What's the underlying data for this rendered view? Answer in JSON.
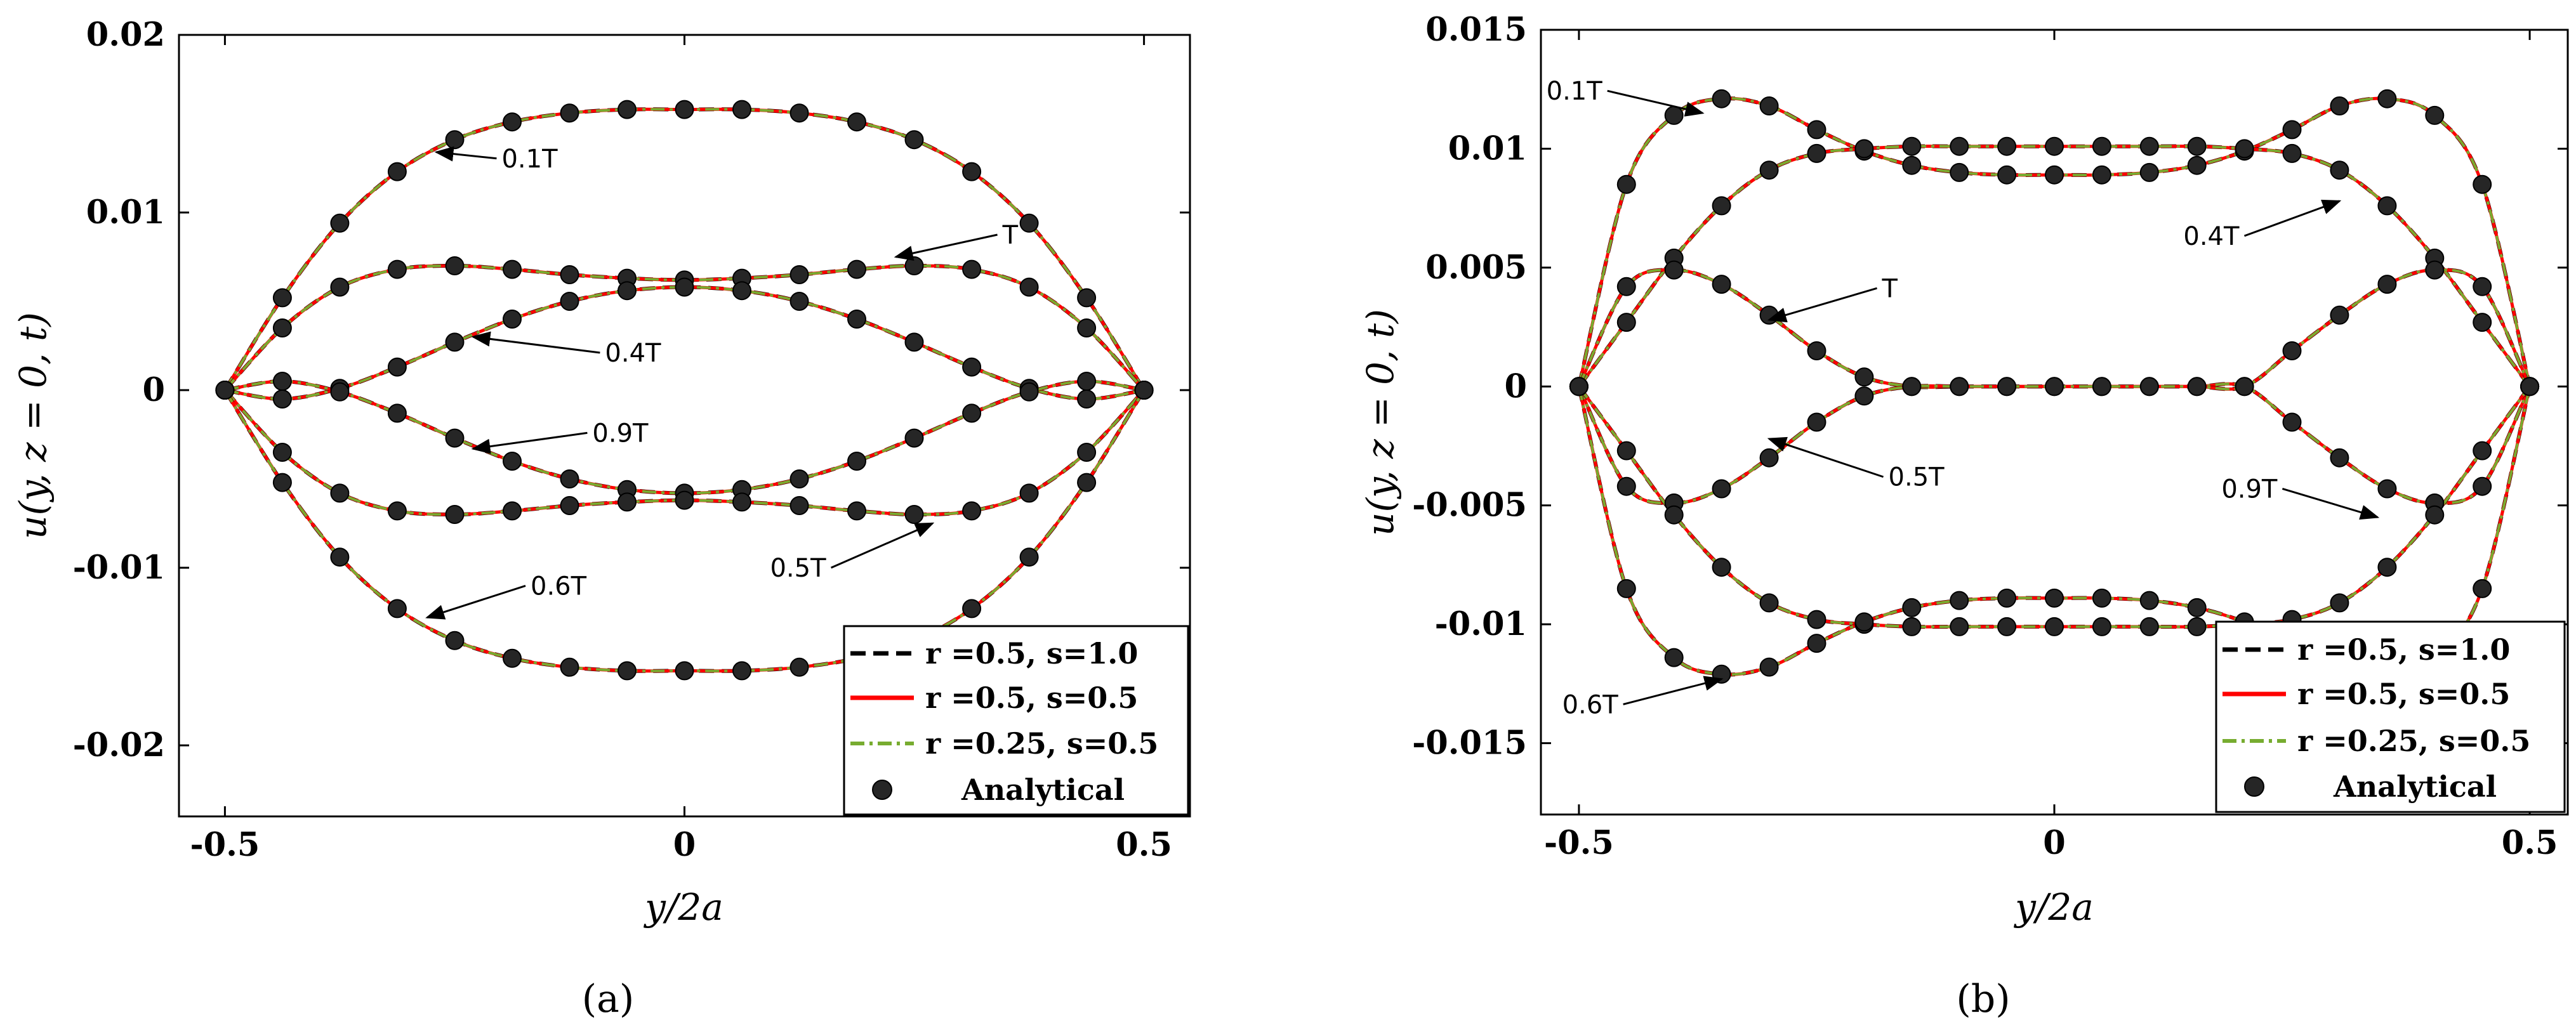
{
  "legend": {
    "entries": [
      {
        "label": "r =0.5, s=1.0",
        "style": "dashed",
        "color": "#000000"
      },
      {
        "label": "r =0.5, s=0.5",
        "style": "solid",
        "color": "#ff0000"
      },
      {
        "label": "r =0.25, s=0.5",
        "style": "dashdot",
        "color": "#77ac30"
      },
      {
        "label": "Analytical",
        "style": "marker",
        "color": "#262626"
      }
    ]
  },
  "chart_data": [
    {
      "type": "line",
      "panel_label": "(a)",
      "xlabel": "y/2a",
      "ylabel": "u(y, z = 0, t)",
      "xlim": [
        -0.55,
        0.55
      ],
      "ylim": [
        -0.024,
        0.02
      ],
      "xticks": [
        -0.5,
        0,
        0.5
      ],
      "xtick_labels": [
        "-0.5",
        "0",
        "0.5"
      ],
      "yticks": [
        -0.02,
        -0.01,
        0,
        0.01,
        0.02
      ],
      "ytick_labels": [
        "-0.02",
        "-0.01",
        "0",
        "0.01",
        "0.02"
      ],
      "x": [
        -0.5,
        -0.4375,
        -0.375,
        -0.3125,
        -0.25,
        -0.1875,
        -0.125,
        -0.0625,
        0,
        0.0625,
        0.125,
        0.1875,
        0.25,
        0.3125,
        0.375,
        0.4375,
        0.5
      ],
      "series": [
        {
          "name": "0.1T",
          "values": [
            0,
            0.0052,
            0.0094,
            0.0123,
            0.0141,
            0.0151,
            0.0156,
            0.0158,
            0.0158,
            0.0158,
            0.0156,
            0.0151,
            0.0141,
            0.0123,
            0.0094,
            0.0052,
            0
          ]
        },
        {
          "name": "T",
          "values": [
            0,
            0.0035,
            0.0058,
            0.0068,
            0.007,
            0.0068,
            0.0065,
            0.0063,
            0.0062,
            0.0063,
            0.0065,
            0.0068,
            0.007,
            0.0068,
            0.0058,
            0.0035,
            0
          ]
        },
        {
          "name": "0.4T",
          "values": [
            0,
            -0.0005,
            0.0001,
            0.0013,
            0.0027,
            0.004,
            0.005,
            0.0056,
            0.0058,
            0.0056,
            0.005,
            0.004,
            0.0027,
            0.0013,
            0.0001,
            -0.0005,
            0
          ]
        },
        {
          "name": "0.9T",
          "values": [
            0,
            0.0005,
            -0.0001,
            -0.0013,
            -0.0027,
            -0.004,
            -0.005,
            -0.0056,
            -0.0058,
            -0.0056,
            -0.005,
            -0.004,
            -0.0027,
            -0.0013,
            -0.0001,
            0.0005,
            0
          ]
        },
        {
          "name": "0.5T",
          "values": [
            0,
            -0.0035,
            -0.0058,
            -0.0068,
            -0.007,
            -0.0068,
            -0.0065,
            -0.0063,
            -0.0062,
            -0.0063,
            -0.0065,
            -0.0068,
            -0.007,
            -0.0068,
            -0.0058,
            -0.0035,
            0
          ]
        },
        {
          "name": "0.6T",
          "values": [
            0,
            -0.0052,
            -0.0094,
            -0.0123,
            -0.0141,
            -0.0151,
            -0.0156,
            -0.0158,
            -0.0158,
            -0.0158,
            -0.0156,
            -0.0151,
            -0.0141,
            -0.0123,
            -0.0094,
            -0.0052,
            0
          ]
        }
      ],
      "annotations": [
        {
          "text": "0.1T",
          "series": "0.1T",
          "x": -0.27,
          "y": 0.0134
        },
        {
          "text": "T",
          "series": "T",
          "x": 0.23,
          "y": 0.0075
        },
        {
          "text": "0.4T",
          "series": "0.4T",
          "x": -0.23,
          "y": 0.003
        },
        {
          "text": "0.9T",
          "series": "0.9T",
          "x": -0.23,
          "y": -0.0033
        },
        {
          "text": "0.5T",
          "series": "0.5T",
          "x": 0.27,
          "y": -0.0075
        },
        {
          "text": "0.6T",
          "series": "0.6T",
          "x": -0.28,
          "y": -0.0128
        }
      ]
    },
    {
      "type": "line",
      "panel_label": "(b)",
      "xlabel": "y/2a",
      "ylabel": "u(y, z = 0, t)",
      "xlim": [
        -0.54,
        0.54
      ],
      "ylim": [
        -0.018,
        0.015
      ],
      "xticks": [
        -0.5,
        0,
        0.5
      ],
      "xtick_labels": [
        "-0.5",
        "0",
        "0.5"
      ],
      "yticks": [
        -0.015,
        -0.01,
        -0.005,
        0,
        0.005,
        0.01,
        0.015
      ],
      "ytick_labels": [
        "-0.015",
        "-0.01",
        "-0.005",
        "0",
        "0.005",
        "0.01",
        "0.015"
      ],
      "x": [
        -0.5,
        -0.45,
        -0.4,
        -0.35,
        -0.3,
        -0.25,
        -0.2,
        -0.15,
        -0.1,
        -0.05,
        0,
        0.05,
        0.1,
        0.15,
        0.2,
        0.25,
        0.3,
        0.35,
        0.4,
        0.45,
        0.5
      ],
      "series": [
        {
          "name": "0.1T",
          "values": [
            0,
            0.0085,
            0.0114,
            0.0121,
            0.0118,
            0.0108,
            0.0099,
            0.0093,
            0.009,
            0.0089,
            0.0089,
            0.0089,
            0.009,
            0.0093,
            0.0099,
            0.0108,
            0.0118,
            0.0121,
            0.0114,
            0.0085,
            0
          ]
        },
        {
          "name": "0.4T",
          "values": [
            0,
            0.0027,
            0.0054,
            0.0076,
            0.0091,
            0.0098,
            0.01,
            0.0101,
            0.0101,
            0.0101,
            0.0101,
            0.0101,
            0.0101,
            0.0101,
            0.01,
            0.0098,
            0.0091,
            0.0076,
            0.0054,
            0.0027,
            0
          ]
        },
        {
          "name": "T",
          "values": [
            0,
            0.0042,
            0.0049,
            0.0043,
            0.003,
            0.0015,
            0.0004,
            0,
            0,
            0,
            0,
            0,
            0,
            0,
            0,
            -0.0015,
            -0.003,
            -0.0043,
            -0.0049,
            -0.0042,
            0
          ]
        },
        {
          "name": "0.5T",
          "values": [
            0,
            -0.0042,
            -0.0049,
            -0.0043,
            -0.003,
            -0.0015,
            -0.0004,
            0,
            0,
            0,
            0,
            0,
            0,
            0,
            0,
            0.0015,
            0.003,
            0.0043,
            0.0049,
            0.0042,
            0
          ]
        },
        {
          "name": "0.9T",
          "values": [
            0,
            -0.0027,
            -0.0054,
            -0.0076,
            -0.0091,
            -0.0098,
            -0.01,
            -0.0101,
            -0.0101,
            -0.0101,
            -0.0101,
            -0.0101,
            -0.0101,
            -0.0101,
            -0.01,
            -0.0098,
            -0.0091,
            -0.0076,
            -0.0054,
            -0.0027,
            0
          ]
        },
        {
          "name": "0.6T",
          "values": [
            0,
            -0.0085,
            -0.0114,
            -0.0121,
            -0.0118,
            -0.0108,
            -0.0099,
            -0.0093,
            -0.009,
            -0.0089,
            -0.0089,
            -0.0089,
            -0.009,
            -0.0093,
            -0.0099,
            -0.0108,
            -0.0118,
            -0.0121,
            -0.0114,
            -0.0085,
            0
          ]
        }
      ],
      "annotations": [
        {
          "text": "0.1T",
          "series": "0.1T",
          "x": -0.37,
          "y": 0.0115
        },
        {
          "text": "0.4T",
          "series": "0.4T",
          "x": 0.3,
          "y": 0.0078
        },
        {
          "text": "T",
          "series": "T",
          "x": -0.3,
          "y": 0.0028
        },
        {
          "text": "0.5T",
          "series": "0.5T",
          "x": -0.3,
          "y": -0.0022
        },
        {
          "text": "0.9T",
          "series": "0.9T",
          "x": 0.34,
          "y": -0.0055
        },
        {
          "text": "0.6T",
          "series": "0.6T",
          "x": -0.35,
          "y": -0.0123
        }
      ]
    }
  ]
}
